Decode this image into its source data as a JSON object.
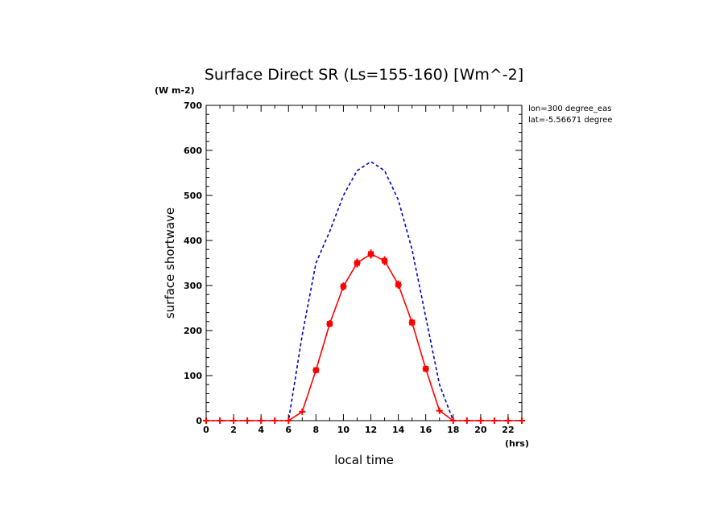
{
  "chart_data": {
    "type": "line",
    "title": "Surface Direct SR (Ls=155-160) [Wm^-2]",
    "ylabel": "surface shortwave",
    "y_unit": "(W m-2)",
    "xlabel": "local time",
    "x_unit": "(hrs)",
    "annotations": [
      "lon=300 degree_eas",
      "lat=-5.56671 degree"
    ],
    "xlim": [
      0,
      23
    ],
    "ylim": [
      0,
      700
    ],
    "x_ticks": [
      0,
      2,
      4,
      6,
      8,
      10,
      12,
      14,
      16,
      18,
      20,
      22
    ],
    "y_ticks": [
      0,
      100,
      200,
      300,
      400,
      500,
      600,
      700
    ],
    "grid": false,
    "series": [
      {
        "style": "dashed",
        "color": "#0000cc",
        "x": [
          0,
          1,
          2,
          3,
          4,
          5,
          6,
          7,
          8,
          9,
          10,
          11,
          12,
          13,
          14,
          15,
          16,
          17,
          18,
          19,
          20,
          21,
          22,
          23
        ],
        "values": [
          0,
          0,
          0,
          0,
          0,
          0,
          0,
          190,
          350,
          420,
          500,
          555,
          575,
          555,
          490,
          380,
          230,
          80,
          0,
          0,
          0,
          0,
          0,
          0
        ]
      },
      {
        "style": "solid-markers",
        "color": "#ff0000",
        "x": [
          0,
          1,
          2,
          3,
          4,
          5,
          6,
          7,
          8,
          9,
          10,
          11,
          12,
          13,
          14,
          15,
          16,
          17,
          18,
          19,
          20,
          21,
          22,
          23
        ],
        "values": [
          0,
          0,
          0,
          0,
          0,
          0,
          0,
          20,
          112,
          215,
          298,
          350,
          370,
          355,
          302,
          218,
          115,
          22,
          0,
          0,
          0,
          0,
          0,
          0
        ],
        "error_bars": [
          0,
          0,
          0,
          0,
          0,
          0,
          0,
          0,
          6,
          8,
          9,
          10,
          10,
          10,
          9,
          8,
          6,
          0,
          0,
          0,
          0,
          0,
          0,
          0
        ]
      }
    ]
  }
}
